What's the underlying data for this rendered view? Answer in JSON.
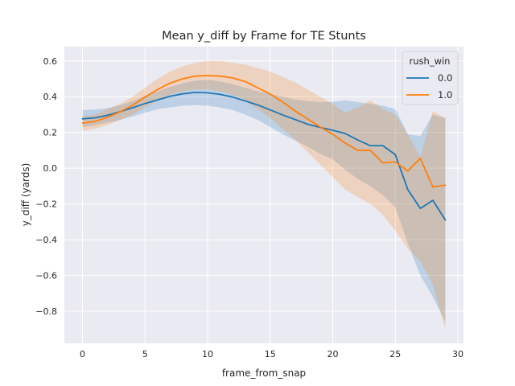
{
  "chart_data": {
    "type": "line",
    "title": "Mean y_diff by Frame for TE Stunts",
    "xlabel": "frame_from_snap",
    "ylabel": "y_diff (yards)",
    "xlim": [
      -1.45,
      30.45
    ],
    "ylim": [
      -0.98,
      0.68
    ],
    "xticks": [
      0,
      5,
      10,
      15,
      20,
      25,
      30
    ],
    "xtick_labels": [
      "0",
      "5",
      "10",
      "15",
      "20",
      "25",
      "30"
    ],
    "yticks": [
      0.6,
      0.4,
      0.2,
      0.0,
      -0.2,
      -0.4,
      -0.6,
      -0.8
    ],
    "ytick_labels": [
      "0.6",
      "0.4",
      "0.2",
      "0.0",
      "−0.2",
      "−0.4",
      "−0.6",
      "−0.8"
    ],
    "grid": true,
    "legend": {
      "title": "rush_win",
      "placement": "top-right"
    },
    "series": [
      {
        "name": "0.0",
        "color": "#1f77b4",
        "x": [
          0,
          1,
          2,
          3,
          4,
          5,
          6,
          7,
          8,
          9,
          10,
          11,
          12,
          13,
          14,
          15,
          16,
          17,
          18,
          19,
          20,
          21,
          22,
          23,
          24,
          25,
          26,
          27,
          28,
          29
        ],
        "values": [
          0.276,
          0.282,
          0.296,
          0.316,
          0.338,
          0.362,
          0.382,
          0.402,
          0.416,
          0.424,
          0.422,
          0.413,
          0.398,
          0.376,
          0.354,
          0.326,
          0.298,
          0.272,
          0.246,
          0.228,
          0.212,
          0.194,
          0.158,
          0.126,
          0.126,
          0.076,
          -0.12,
          -0.225,
          -0.18,
          -0.29
        ],
        "ci_low": [
          0.23,
          0.24,
          0.255,
          0.27,
          0.29,
          0.31,
          0.33,
          0.34,
          0.35,
          0.353,
          0.35,
          0.34,
          0.325,
          0.3,
          0.27,
          0.23,
          0.19,
          0.155,
          0.12,
          0.08,
          0.05,
          -0.01,
          -0.06,
          -0.1,
          -0.15,
          -0.22,
          -0.42,
          -0.6,
          -0.72,
          -0.86
        ],
        "ci_high": [
          0.325,
          0.328,
          0.336,
          0.352,
          0.375,
          0.405,
          0.43,
          0.455,
          0.475,
          0.49,
          0.495,
          0.485,
          0.47,
          0.45,
          0.43,
          0.415,
          0.4,
          0.385,
          0.375,
          0.37,
          0.37,
          0.38,
          0.37,
          0.36,
          0.35,
          0.33,
          0.19,
          0.18,
          0.3,
          0.28
        ]
      },
      {
        "name": "1.0",
        "color": "#ff7f0e",
        "x": [
          0,
          1,
          2,
          3,
          4,
          5,
          6,
          7,
          8,
          9,
          10,
          11,
          12,
          13,
          14,
          15,
          16,
          17,
          18,
          19,
          20,
          21,
          22,
          23,
          24,
          25,
          26,
          27,
          28,
          29
        ],
        "values": [
          0.252,
          0.262,
          0.285,
          0.315,
          0.352,
          0.398,
          0.44,
          0.476,
          0.5,
          0.515,
          0.518,
          0.515,
          0.505,
          0.485,
          0.45,
          0.415,
          0.37,
          0.32,
          0.275,
          0.23,
          0.19,
          0.14,
          0.1,
          0.1,
          0.03,
          0.035,
          -0.015,
          0.055,
          -0.105,
          -0.095
        ],
        "ci_low": [
          0.21,
          0.22,
          0.24,
          0.27,
          0.3,
          0.34,
          0.38,
          0.41,
          0.43,
          0.44,
          0.44,
          0.43,
          0.41,
          0.38,
          0.33,
          0.28,
          0.22,
          0.16,
          0.09,
          0.02,
          -0.05,
          -0.12,
          -0.16,
          -0.2,
          -0.26,
          -0.35,
          -0.45,
          -0.52,
          -0.65,
          -0.9
        ],
        "ci_high": [
          0.29,
          0.3,
          0.33,
          0.36,
          0.4,
          0.45,
          0.5,
          0.54,
          0.57,
          0.59,
          0.6,
          0.6,
          0.59,
          0.58,
          0.56,
          0.54,
          0.51,
          0.48,
          0.44,
          0.4,
          0.36,
          0.31,
          0.34,
          0.38,
          0.33,
          0.3,
          0.19,
          0.06,
          0.32,
          0.28
        ]
      }
    ]
  }
}
